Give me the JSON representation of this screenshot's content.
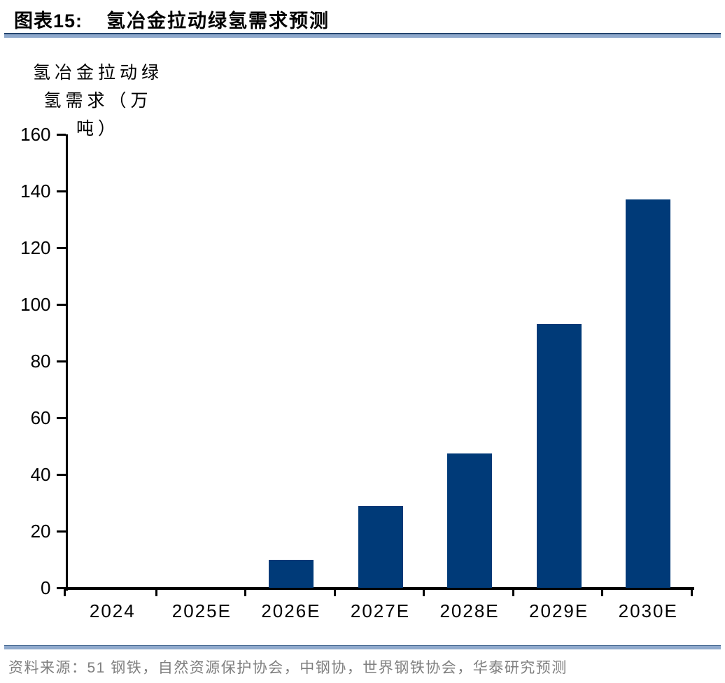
{
  "header": {
    "figure_label": "图表15:",
    "figure_title": "氢冶金拉动绿氢需求预测"
  },
  "footer": {
    "source": "资料来源：51 钢铁，自然资源保护协会，中钢协，世界钢铁协会，华泰研究预测"
  },
  "colors": {
    "bar": "#003A78",
    "axis": "#000000",
    "rule_dark": "#24456E",
    "rule_light": "#8FA9CC",
    "source_text": "#7F7F7F"
  },
  "chart_data": {
    "type": "bar",
    "title": "氢冶金拉动绿氢需求预测",
    "ylabel": "氢冶金拉动绿氢需求（万吨）",
    "ylabel_lines": [
      "氢冶金拉动绿",
      "氢需求（万",
      "吨）"
    ],
    "xlabel": "",
    "categories": [
      "2024",
      "2025E",
      "2026E",
      "2027E",
      "2028E",
      "2029E",
      "2030E"
    ],
    "values": [
      0,
      0,
      10,
      29,
      47.5,
      93,
      137
    ],
    "yticks": [
      0,
      20,
      40,
      60,
      80,
      100,
      120,
      140,
      160
    ],
    "ylim": [
      0,
      160
    ],
    "bar_color": "#003A78",
    "grid": false,
    "legend": false
  }
}
